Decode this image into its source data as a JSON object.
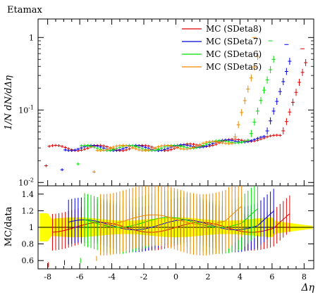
{
  "title": "Etamax",
  "chart_data": {
    "type": "scatter",
    "title": "Etamax",
    "xlabel": "Δη",
    "ylabel_main": "1/N dN/dΔη",
    "ylabel_ratio": "MC/data",
    "xlim": [
      -8.6,
      8.6
    ],
    "xticks": [
      -8,
      -6,
      -4,
      -2,
      0,
      2,
      4,
      6,
      8
    ],
    "main_panel": {
      "yscale": "log",
      "ylim": [
        0.009,
        1.8
      ],
      "yticks": [
        {
          "value": 0.01,
          "label": "10^-2"
        },
        {
          "value": 0.1,
          "label": "10^-1"
        },
        {
          "value": 1,
          "label": "1"
        }
      ]
    },
    "ratio_panel": {
      "ylim": [
        0.5,
        1.5
      ],
      "yticks": [
        0.6,
        0.8,
        1,
        1.2,
        1.4
      ],
      "reference_line": 1,
      "band_color": "#ffff00"
    },
    "legend_position": "top-right",
    "series": [
      {
        "name": "MC (SDeta8)",
        "color": "#dd0000",
        "start": -8.1,
        "end": 8.1,
        "low": 0.017,
        "turn": 6.6,
        "tail": 0.45,
        "spike": 0.7,
        "xspike": 7.9
      },
      {
        "name": "MC (SDeta7)",
        "color": "#0000dd",
        "start": -7.1,
        "end": 7.1,
        "low": 0.015,
        "turn": 5.6,
        "tail": 0.47,
        "spike": 0.8,
        "xspike": 6.9
      },
      {
        "name": "MC (SDeta6)",
        "color": "#00dd00",
        "start": -6.1,
        "end": 6.1,
        "low": 0.018,
        "turn": 4.6,
        "tail": 0.5,
        "spike": 0.9,
        "xspike": 5.9
      },
      {
        "name": "MC (SDeta5)",
        "color": "#ee8800",
        "start": -5.1,
        "end": 5.1,
        "low": 0.014,
        "turn": 3.6,
        "tail": 0.55,
        "spike": 1.0,
        "xspike": 4.9
      }
    ]
  }
}
